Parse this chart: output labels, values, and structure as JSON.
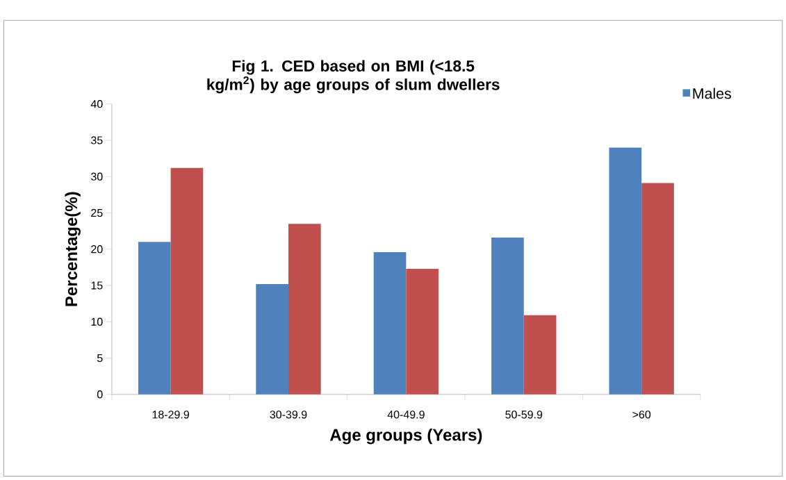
{
  "chart_data": {
    "type": "bar",
    "title": "Fig 1. CED based on BMI (<18.5 kg/m$^{2}$) by age groups of slum dwellers",
    "xlabel": "Age groups (Years)",
    "ylabel": "Percentage(%)",
    "categories": [
      "18-29.9",
      "30-39.9",
      "40-49.9",
      "50-59.9",
      ">60"
    ],
    "series": [
      {
        "name": "Males",
        "color": "#4f81bd",
        "values": [
          21.0,
          15.2,
          19.6,
          21.6,
          34.0
        ]
      },
      {
        "color": "#c0504d",
        "values": [
          31.2,
          23.5,
          17.3,
          10.9,
          29.1
        ]
      }
    ],
    "ylim": [
      0,
      40
    ],
    "yticks": [
      0,
      5,
      10,
      15,
      20,
      25,
      30,
      35,
      40
    ],
    "grid": false,
    "legend": "top right"
  }
}
